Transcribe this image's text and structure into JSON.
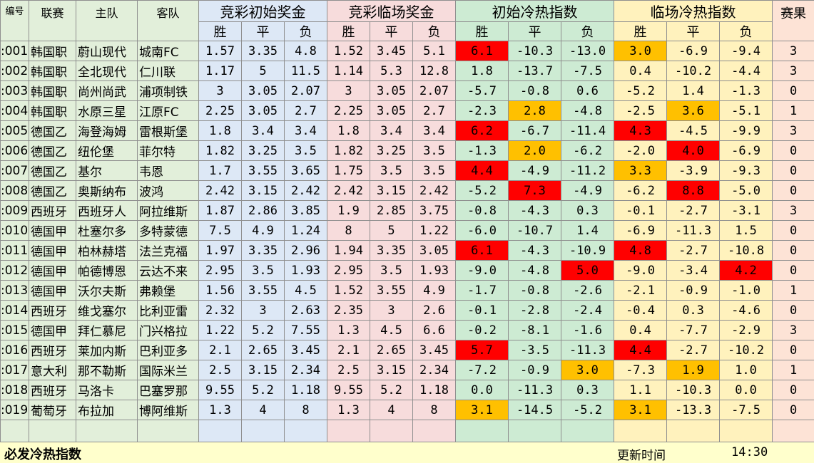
{
  "headers": {
    "id": "编号",
    "league": "联赛",
    "home": "主队",
    "away": "客队",
    "groups": [
      "竞彩初始奖金",
      "竞彩临场奖金",
      "初始冷热指数",
      "临场冷热指数"
    ],
    "sub": [
      "胜",
      "平",
      "负"
    ],
    "result": "赛果"
  },
  "colors": {
    "hot": "#ff0000",
    "warm": "#ffc000"
  },
  "rows": [
    {
      "id": ":001",
      "league": "韩国职",
      "home": "蔚山现代",
      "away": "城南FC",
      "odds_init": [
        "1.57",
        "3.35",
        "4.8"
      ],
      "odds_live": [
        "1.52",
        "3.45",
        "5.1"
      ],
      "idx_init": [
        "6.1",
        "-10.3",
        "-13.0"
      ],
      "idx_live": [
        "3.0",
        "-6.9",
        "-9.4"
      ],
      "res": "3",
      "hl_init": [
        "red",
        "",
        ""
      ],
      "hl_live": [
        "orange",
        "",
        ""
      ]
    },
    {
      "id": ":002",
      "league": "韩国职",
      "home": "全北现代",
      "away": "仁川联",
      "odds_init": [
        "1.17",
        "5",
        "11.5"
      ],
      "odds_live": [
        "1.14",
        "5.3",
        "12.8"
      ],
      "idx_init": [
        "1.8",
        "-13.7",
        "-7.5"
      ],
      "idx_live": [
        "0.4",
        "-10.2",
        "-4.4"
      ],
      "res": "3",
      "hl_init": [
        "",
        "",
        ""
      ],
      "hl_live": [
        "",
        "",
        ""
      ]
    },
    {
      "id": ":003",
      "league": "韩国职",
      "home": "尚州尚武",
      "away": "浦项制铁",
      "odds_init": [
        "3",
        "3.05",
        "2.07"
      ],
      "odds_live": [
        "3",
        "3.05",
        "2.07"
      ],
      "idx_init": [
        "-5.7",
        "-0.8",
        "0.6"
      ],
      "idx_live": [
        "-5.2",
        "1.4",
        "-1.3"
      ],
      "res": "0",
      "hl_init": [
        "",
        "",
        ""
      ],
      "hl_live": [
        "",
        "",
        ""
      ]
    },
    {
      "id": ":004",
      "league": "韩国职",
      "home": "水原三星",
      "away": "江原FC",
      "odds_init": [
        "2.25",
        "3.05",
        "2.7"
      ],
      "odds_live": [
        "2.25",
        "3.05",
        "2.7"
      ],
      "idx_init": [
        "-2.3",
        "2.8",
        "-4.8"
      ],
      "idx_live": [
        "-2.5",
        "3.6",
        "-5.1"
      ],
      "res": "1",
      "hl_init": [
        "",
        "orange",
        ""
      ],
      "hl_live": [
        "",
        "orange",
        ""
      ]
    },
    {
      "id": ":005",
      "league": "德国乙",
      "home": "海登海姆",
      "away": "雷根斯堡",
      "odds_init": [
        "1.8",
        "3.4",
        "3.4"
      ],
      "odds_live": [
        "1.8",
        "3.4",
        "3.4"
      ],
      "idx_init": [
        "6.2",
        "-6.7",
        "-11.4"
      ],
      "idx_live": [
        "4.3",
        "-4.5",
        "-9.9"
      ],
      "res": "3",
      "hl_init": [
        "red",
        "",
        ""
      ],
      "hl_live": [
        "red",
        "",
        ""
      ]
    },
    {
      "id": ":006",
      "league": "德国乙",
      "home": "纽伦堡",
      "away": "菲尔特",
      "odds_init": [
        "1.82",
        "3.25",
        "3.5"
      ],
      "odds_live": [
        "1.82",
        "3.25",
        "3.5"
      ],
      "idx_init": [
        "-1.3",
        "2.0",
        "-6.2"
      ],
      "idx_live": [
        "-2.0",
        "4.0",
        "-6.9"
      ],
      "res": "0",
      "hl_init": [
        "",
        "orange",
        ""
      ],
      "hl_live": [
        "",
        "red",
        ""
      ]
    },
    {
      "id": ":007",
      "league": "德国乙",
      "home": "基尔",
      "away": "韦恩",
      "odds_init": [
        "1.7",
        "3.55",
        "3.65"
      ],
      "odds_live": [
        "1.75",
        "3.5",
        "3.5"
      ],
      "idx_init": [
        "4.4",
        "-4.9",
        "-11.2"
      ],
      "idx_live": [
        "3.3",
        "-3.9",
        "-9.3"
      ],
      "res": "0",
      "hl_init": [
        "red",
        "",
        ""
      ],
      "hl_live": [
        "orange",
        "",
        ""
      ]
    },
    {
      "id": ":008",
      "league": "德国乙",
      "home": "奥斯纳布",
      "away": "波鸿",
      "odds_init": [
        "2.42",
        "3.15",
        "2.42"
      ],
      "odds_live": [
        "2.42",
        "3.15",
        "2.42"
      ],
      "idx_init": [
        "-5.2",
        "7.3",
        "-4.9"
      ],
      "idx_live": [
        "-6.2",
        "8.8",
        "-5.0"
      ],
      "res": "0",
      "hl_init": [
        "",
        "red",
        ""
      ],
      "hl_live": [
        "",
        "red",
        ""
      ]
    },
    {
      "id": ":009",
      "league": "西班牙",
      "home": "西班牙人",
      "away": "阿拉维斯",
      "odds_init": [
        "1.87",
        "2.86",
        "3.85"
      ],
      "odds_live": [
        "1.9",
        "2.85",
        "3.75"
      ],
      "idx_init": [
        "-0.8",
        "-4.3",
        "0.3"
      ],
      "idx_live": [
        "-0.1",
        "-2.7",
        "-3.1"
      ],
      "res": "3",
      "hl_init": [
        "",
        "",
        ""
      ],
      "hl_live": [
        "",
        "",
        ""
      ]
    },
    {
      "id": ":010",
      "league": "德国甲",
      "home": "杜塞尔多",
      "away": "多特蒙德",
      "odds_init": [
        "7.5",
        "4.9",
        "1.24"
      ],
      "odds_live": [
        "8",
        "5",
        "1.22"
      ],
      "idx_init": [
        "-6.0",
        "-10.7",
        "1.4"
      ],
      "idx_live": [
        "-6.9",
        "-11.3",
        "1.5"
      ],
      "res": "0",
      "hl_init": [
        "",
        "",
        ""
      ],
      "hl_live": [
        "",
        "",
        ""
      ]
    },
    {
      "id": ":011",
      "league": "德国甲",
      "home": "柏林赫塔",
      "away": "法兰克福",
      "odds_init": [
        "1.97",
        "3.35",
        "2.96"
      ],
      "odds_live": [
        "1.94",
        "3.35",
        "3.05"
      ],
      "idx_init": [
        "6.1",
        "-4.3",
        "-10.9"
      ],
      "idx_live": [
        "4.8",
        "-2.7",
        "-10.8"
      ],
      "res": "0",
      "hl_init": [
        "red",
        "",
        ""
      ],
      "hl_live": [
        "red",
        "",
        ""
      ]
    },
    {
      "id": ":012",
      "league": "德国甲",
      "home": "帕德博恩",
      "away": "云达不来",
      "odds_init": [
        "2.95",
        "3.5",
        "1.93"
      ],
      "odds_live": [
        "2.95",
        "3.5",
        "1.93"
      ],
      "idx_init": [
        "-9.0",
        "-4.8",
        "5.0"
      ],
      "idx_live": [
        "-9.0",
        "-3.4",
        "4.2"
      ],
      "res": "0",
      "hl_init": [
        "",
        "",
        "red"
      ],
      "hl_live": [
        "",
        "",
        "red"
      ]
    },
    {
      "id": ":013",
      "league": "德国甲",
      "home": "沃尔夫斯",
      "away": "弗赖堡",
      "odds_init": [
        "1.56",
        "3.55",
        "4.5"
      ],
      "odds_live": [
        "1.52",
        "3.55",
        "4.9"
      ],
      "idx_init": [
        "-1.7",
        "-0.8",
        "-2.6"
      ],
      "idx_live": [
        "-2.1",
        "-0.9",
        "-1.0"
      ],
      "res": "1",
      "hl_init": [
        "",
        "",
        ""
      ],
      "hl_live": [
        "",
        "",
        ""
      ]
    },
    {
      "id": ":014",
      "league": "西班牙",
      "home": "维戈塞尔",
      "away": "比利亚雷",
      "odds_init": [
        "2.32",
        "3",
        "2.63"
      ],
      "odds_live": [
        "2.35",
        "3",
        "2.6"
      ],
      "idx_init": [
        "-0.1",
        "-2.8",
        "-2.4"
      ],
      "idx_live": [
        "-0.4",
        "0.3",
        "-4.6"
      ],
      "res": "0",
      "hl_init": [
        "",
        "",
        ""
      ],
      "hl_live": [
        "",
        "",
        ""
      ]
    },
    {
      "id": ":015",
      "league": "德国甲",
      "home": "拜仁慕尼",
      "away": "门兴格拉",
      "odds_init": [
        "1.22",
        "5.2",
        "7.55"
      ],
      "odds_live": [
        "1.3",
        "4.5",
        "6.6"
      ],
      "idx_init": [
        "-0.2",
        "-8.1",
        "-1.6"
      ],
      "idx_live": [
        "0.4",
        "-7.7",
        "-2.9"
      ],
      "res": "3",
      "hl_init": [
        "",
        "",
        ""
      ],
      "hl_live": [
        "",
        "",
        ""
      ]
    },
    {
      "id": ":016",
      "league": "西班牙",
      "home": "莱加内斯",
      "away": "巴利亚多",
      "odds_init": [
        "2.1",
        "2.65",
        "3.45"
      ],
      "odds_live": [
        "2.1",
        "2.65",
        "3.45"
      ],
      "idx_init": [
        "5.7",
        "-3.5",
        "-11.3"
      ],
      "idx_live": [
        "4.4",
        "-2.7",
        "-10.2"
      ],
      "res": "0",
      "hl_init": [
        "red",
        "",
        ""
      ],
      "hl_live": [
        "red",
        "",
        ""
      ]
    },
    {
      "id": ":017",
      "league": "意大利",
      "home": "那不勒斯",
      "away": "国际米兰",
      "odds_init": [
        "2.5",
        "3.15",
        "2.34"
      ],
      "odds_live": [
        "2.5",
        "3.15",
        "2.34"
      ],
      "idx_init": [
        "-7.2",
        "-0.9",
        "3.0"
      ],
      "idx_live": [
        "-7.3",
        "1.9",
        "1.0"
      ],
      "res": "1",
      "hl_init": [
        "",
        "",
        "orange"
      ],
      "hl_live": [
        "",
        "orange",
        ""
      ]
    },
    {
      "id": ":018",
      "league": "西班牙",
      "home": "马洛卡",
      "away": "巴塞罗那",
      "odds_init": [
        "9.55",
        "5.2",
        "1.18"
      ],
      "odds_live": [
        "9.55",
        "5.2",
        "1.18"
      ],
      "idx_init": [
        "0.0",
        "-11.3",
        "0.3"
      ],
      "idx_live": [
        "1.1",
        "-10.3",
        "0.0"
      ],
      "res": "0",
      "hl_init": [
        "",
        "",
        ""
      ],
      "hl_live": [
        "",
        "",
        ""
      ]
    },
    {
      "id": ":019",
      "league": "葡萄牙",
      "home": "布拉加",
      "away": "博阿维斯",
      "odds_init": [
        "1.3",
        "4",
        "8"
      ],
      "odds_live": [
        "1.3",
        "4",
        "8"
      ],
      "idx_init": [
        "3.1",
        "-14.5",
        "-5.2"
      ],
      "idx_live": [
        "3.1",
        "-13.3",
        "-7.5"
      ],
      "res": "0",
      "hl_init": [
        "orange",
        "",
        ""
      ],
      "hl_live": [
        "orange",
        "",
        ""
      ]
    }
  ],
  "footer": {
    "title": "必发冷热指数",
    "update_label": "更新时间",
    "update_time": "14:30"
  }
}
